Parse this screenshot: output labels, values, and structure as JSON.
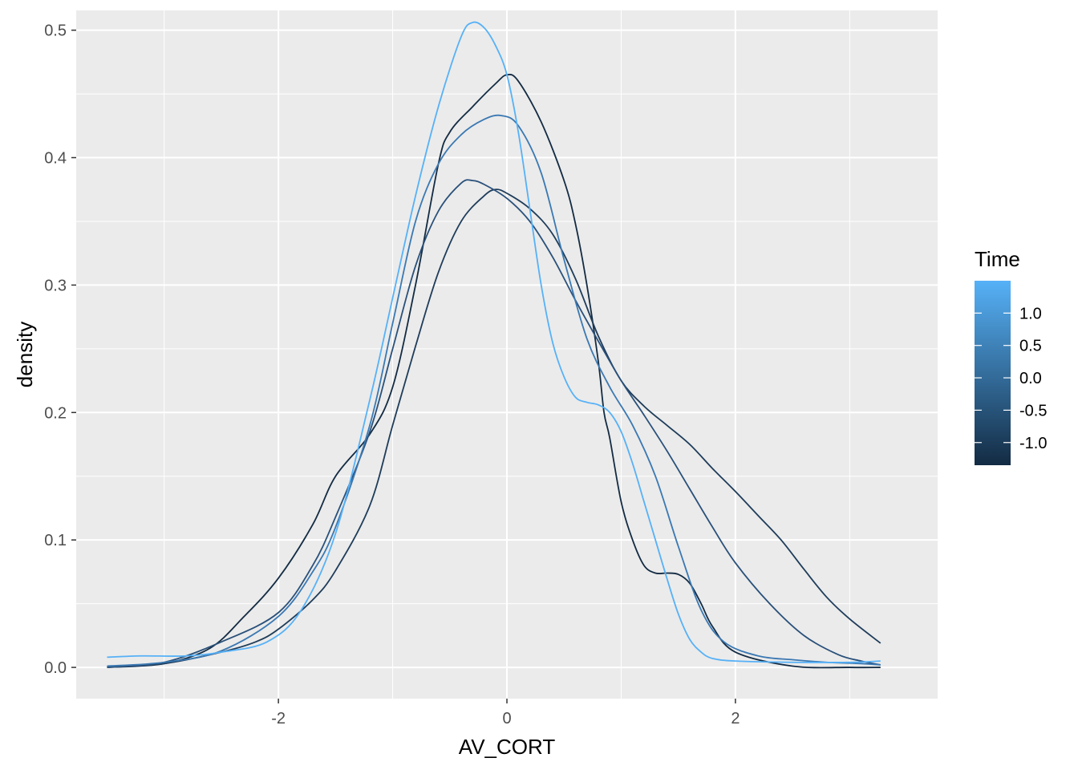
{
  "chart_data": {
    "type": "line",
    "title": "",
    "xlabel": "AV_CORT",
    "ylabel": "density",
    "xlim": [
      -3.77,
      3.77
    ],
    "ylim": [
      -0.0245,
      0.5155
    ],
    "x_ticks": [
      -2,
      0,
      2
    ],
    "x_tick_labels": [
      "-2",
      "0",
      "2"
    ],
    "y_ticks": [
      0.0,
      0.1,
      0.2,
      0.3,
      0.4,
      0.5
    ],
    "y_tick_labels": [
      "0.0",
      "0.1",
      "0.2",
      "0.3",
      "0.4",
      "0.5"
    ],
    "grid": true,
    "background": "#ebebeb",
    "grid_color": "#ffffff",
    "legend": {
      "title": "Time",
      "position": "right",
      "type": "colorbar",
      "range": [
        -1.35,
        1.5
      ],
      "colors": [
        "#132b43",
        "#56b1f7"
      ],
      "breaks": [
        1.0,
        0.5,
        0.0,
        -0.5,
        -1.0
      ],
      "break_labels": [
        "1.0",
        "0.5",
        "0.0",
        "-0.5",
        "-1.0"
      ]
    },
    "series": [
      {
        "time": -1.33,
        "color": "#132b43",
        "x": [
          -3.5,
          -3.0,
          -2.6,
          -2.3,
          -2.0,
          -1.7,
          -1.5,
          -1.2,
          -1.0,
          -0.8,
          -0.6,
          -0.5,
          -0.3,
          -0.1,
          0.0,
          0.1,
          0.3,
          0.5,
          0.6,
          0.7,
          0.8,
          0.85,
          0.9,
          1.0,
          1.1,
          1.2,
          1.3,
          1.4,
          1.5,
          1.6,
          1.7,
          1.8,
          2.0,
          2.5,
          3.0,
          3.27
        ],
        "y": [
          0.0,
          0.003,
          0.015,
          0.04,
          0.07,
          0.112,
          0.15,
          0.183,
          0.22,
          0.3,
          0.395,
          0.42,
          0.44,
          0.458,
          0.465,
          0.46,
          0.428,
          0.382,
          0.348,
          0.3,
          0.24,
          0.2,
          0.18,
          0.13,
          0.1,
          0.08,
          0.074,
          0.074,
          0.073,
          0.066,
          0.05,
          0.032,
          0.012,
          0.001,
          0.0,
          0.0
        ]
      },
      {
        "time": -0.9,
        "color": "#1e3c5a",
        "x": [
          -3.5,
          -3.0,
          -2.5,
          -2.2,
          -2.0,
          -1.7,
          -1.5,
          -1.2,
          -1.0,
          -0.8,
          -0.6,
          -0.4,
          -0.2,
          -0.1,
          0.0,
          0.2,
          0.4,
          0.6,
          0.8,
          1.0,
          1.2,
          1.4,
          1.6,
          1.8,
          2.0,
          2.2,
          2.4,
          2.6,
          2.8,
          3.0,
          3.27
        ],
        "y": [
          0.0,
          0.003,
          0.012,
          0.02,
          0.03,
          0.053,
          0.076,
          0.127,
          0.19,
          0.252,
          0.31,
          0.35,
          0.37,
          0.375,
          0.372,
          0.36,
          0.34,
          0.305,
          0.26,
          0.225,
          0.205,
          0.19,
          0.175,
          0.156,
          0.138,
          0.119,
          0.1,
          0.077,
          0.055,
          0.038,
          0.019
        ]
      },
      {
        "time": -0.3,
        "color": "#29507a",
        "x": [
          -3.5,
          -3.0,
          -2.5,
          -2.0,
          -1.7,
          -1.5,
          -1.2,
          -1.0,
          -0.8,
          -0.6,
          -0.4,
          -0.3,
          -0.2,
          0.0,
          0.2,
          0.4,
          0.6,
          0.8,
          1.0,
          1.2,
          1.4,
          1.6,
          1.8,
          2.0,
          2.3,
          2.6,
          2.9,
          3.1,
          3.27
        ],
        "y": [
          0.0,
          0.004,
          0.02,
          0.043,
          0.08,
          0.118,
          0.185,
          0.25,
          0.315,
          0.358,
          0.38,
          0.382,
          0.379,
          0.368,
          0.35,
          0.322,
          0.288,
          0.256,
          0.225,
          0.198,
          0.17,
          0.14,
          0.11,
          0.082,
          0.05,
          0.025,
          0.01,
          0.005,
          0.002
        ]
      },
      {
        "time": 0.45,
        "color": "#3a78b2",
        "x": [
          -3.5,
          -3.0,
          -2.5,
          -2.0,
          -1.7,
          -1.5,
          -1.2,
          -1.0,
          -0.8,
          -0.6,
          -0.4,
          -0.2,
          -0.05,
          0.1,
          0.3,
          0.5,
          0.7,
          0.9,
          1.1,
          1.3,
          1.5,
          1.7,
          1.9,
          2.2,
          2.5,
          2.8,
          3.1,
          3.27
        ],
        "y": [
          0.001,
          0.004,
          0.013,
          0.04,
          0.075,
          0.11,
          0.19,
          0.27,
          0.35,
          0.395,
          0.418,
          0.43,
          0.433,
          0.425,
          0.388,
          0.32,
          0.258,
          0.22,
          0.19,
          0.15,
          0.095,
          0.045,
          0.02,
          0.009,
          0.006,
          0.004,
          0.003,
          0.002
        ]
      },
      {
        "time": 1.45,
        "color": "#56b1f7",
        "x": [
          -3.5,
          -3.2,
          -2.8,
          -2.5,
          -2.1,
          -1.8,
          -1.5,
          -1.2,
          -1.0,
          -0.8,
          -0.6,
          -0.4,
          -0.3,
          -0.2,
          -0.1,
          0.0,
          0.1,
          0.2,
          0.3,
          0.4,
          0.5,
          0.6,
          0.7,
          0.8,
          0.9,
          1.0,
          1.1,
          1.2,
          1.3,
          1.4,
          1.5,
          1.6,
          1.7,
          1.8,
          2.0,
          2.5,
          3.0,
          3.27
        ],
        "y": [
          0.008,
          0.009,
          0.009,
          0.012,
          0.02,
          0.045,
          0.105,
          0.21,
          0.29,
          0.37,
          0.44,
          0.495,
          0.506,
          0.502,
          0.488,
          0.465,
          0.42,
          0.36,
          0.3,
          0.255,
          0.228,
          0.212,
          0.208,
          0.206,
          0.2,
          0.185,
          0.16,
          0.13,
          0.1,
          0.07,
          0.042,
          0.022,
          0.012,
          0.007,
          0.005,
          0.004,
          0.004,
          0.005
        ]
      }
    ]
  }
}
